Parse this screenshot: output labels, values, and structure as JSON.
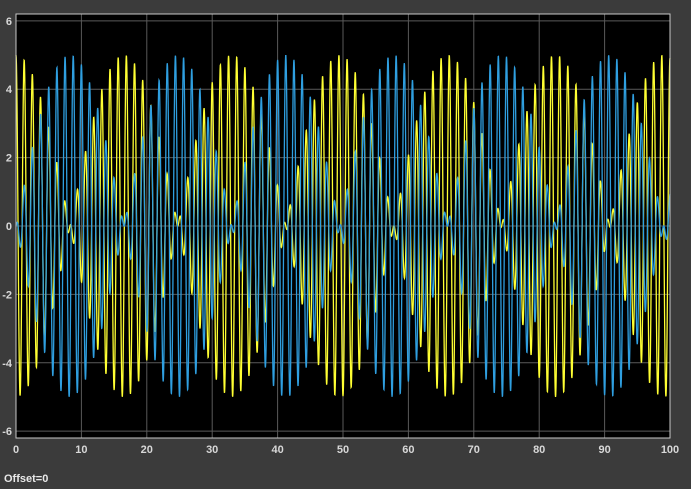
{
  "status_bar": {
    "offset_label": "Offset=0"
  },
  "colors": {
    "background": "#3b3b3b",
    "plot_background": "#000000",
    "grid": "#5a5a5a",
    "axes_frame": "#c8c8c8",
    "tick_text": "#d8d8d8",
    "series_1": "#ffff33",
    "series_2": "#2f9fe0"
  },
  "chart_data": {
    "type": "line",
    "title": "",
    "xlabel": "",
    "ylabel": "",
    "xlim": [
      0,
      100
    ],
    "ylim": [
      -6.2,
      6.2
    ],
    "xticks": [
      0,
      10,
      20,
      30,
      40,
      50,
      60,
      70,
      80,
      90,
      100
    ],
    "yticks": [
      -6,
      -4,
      -2,
      0,
      2,
      4,
      6
    ],
    "grid": true,
    "legend": false,
    "series": [
      {
        "color": "#ffff33",
        "description_of_values": "amplitude-modulated oscillation",
        "envelope_amplitude": 5,
        "carrier_frequency_cycles_per_unit": 0.8,
        "envelope_frequency_cycles_per_unit": 0.0303,
        "envelope_phase": "cos",
        "envelope_max_at_x": [
          0,
          33,
          66,
          99
        ],
        "envelope_min_at_x": [
          16.5,
          49.5,
          82.5
        ]
      },
      {
        "color": "#2f9fe0",
        "description_of_values": "amplitude-modulated oscillation",
        "envelope_amplitude": 5,
        "carrier_frequency_cycles_per_unit": 0.8,
        "envelope_frequency_cycles_per_unit": 0.0303,
        "envelope_phase": "sin",
        "envelope_max_at_x": [
          16.5,
          49.5,
          82.5
        ],
        "envelope_min_at_x": [
          0,
          33,
          66,
          99
        ]
      }
    ]
  }
}
